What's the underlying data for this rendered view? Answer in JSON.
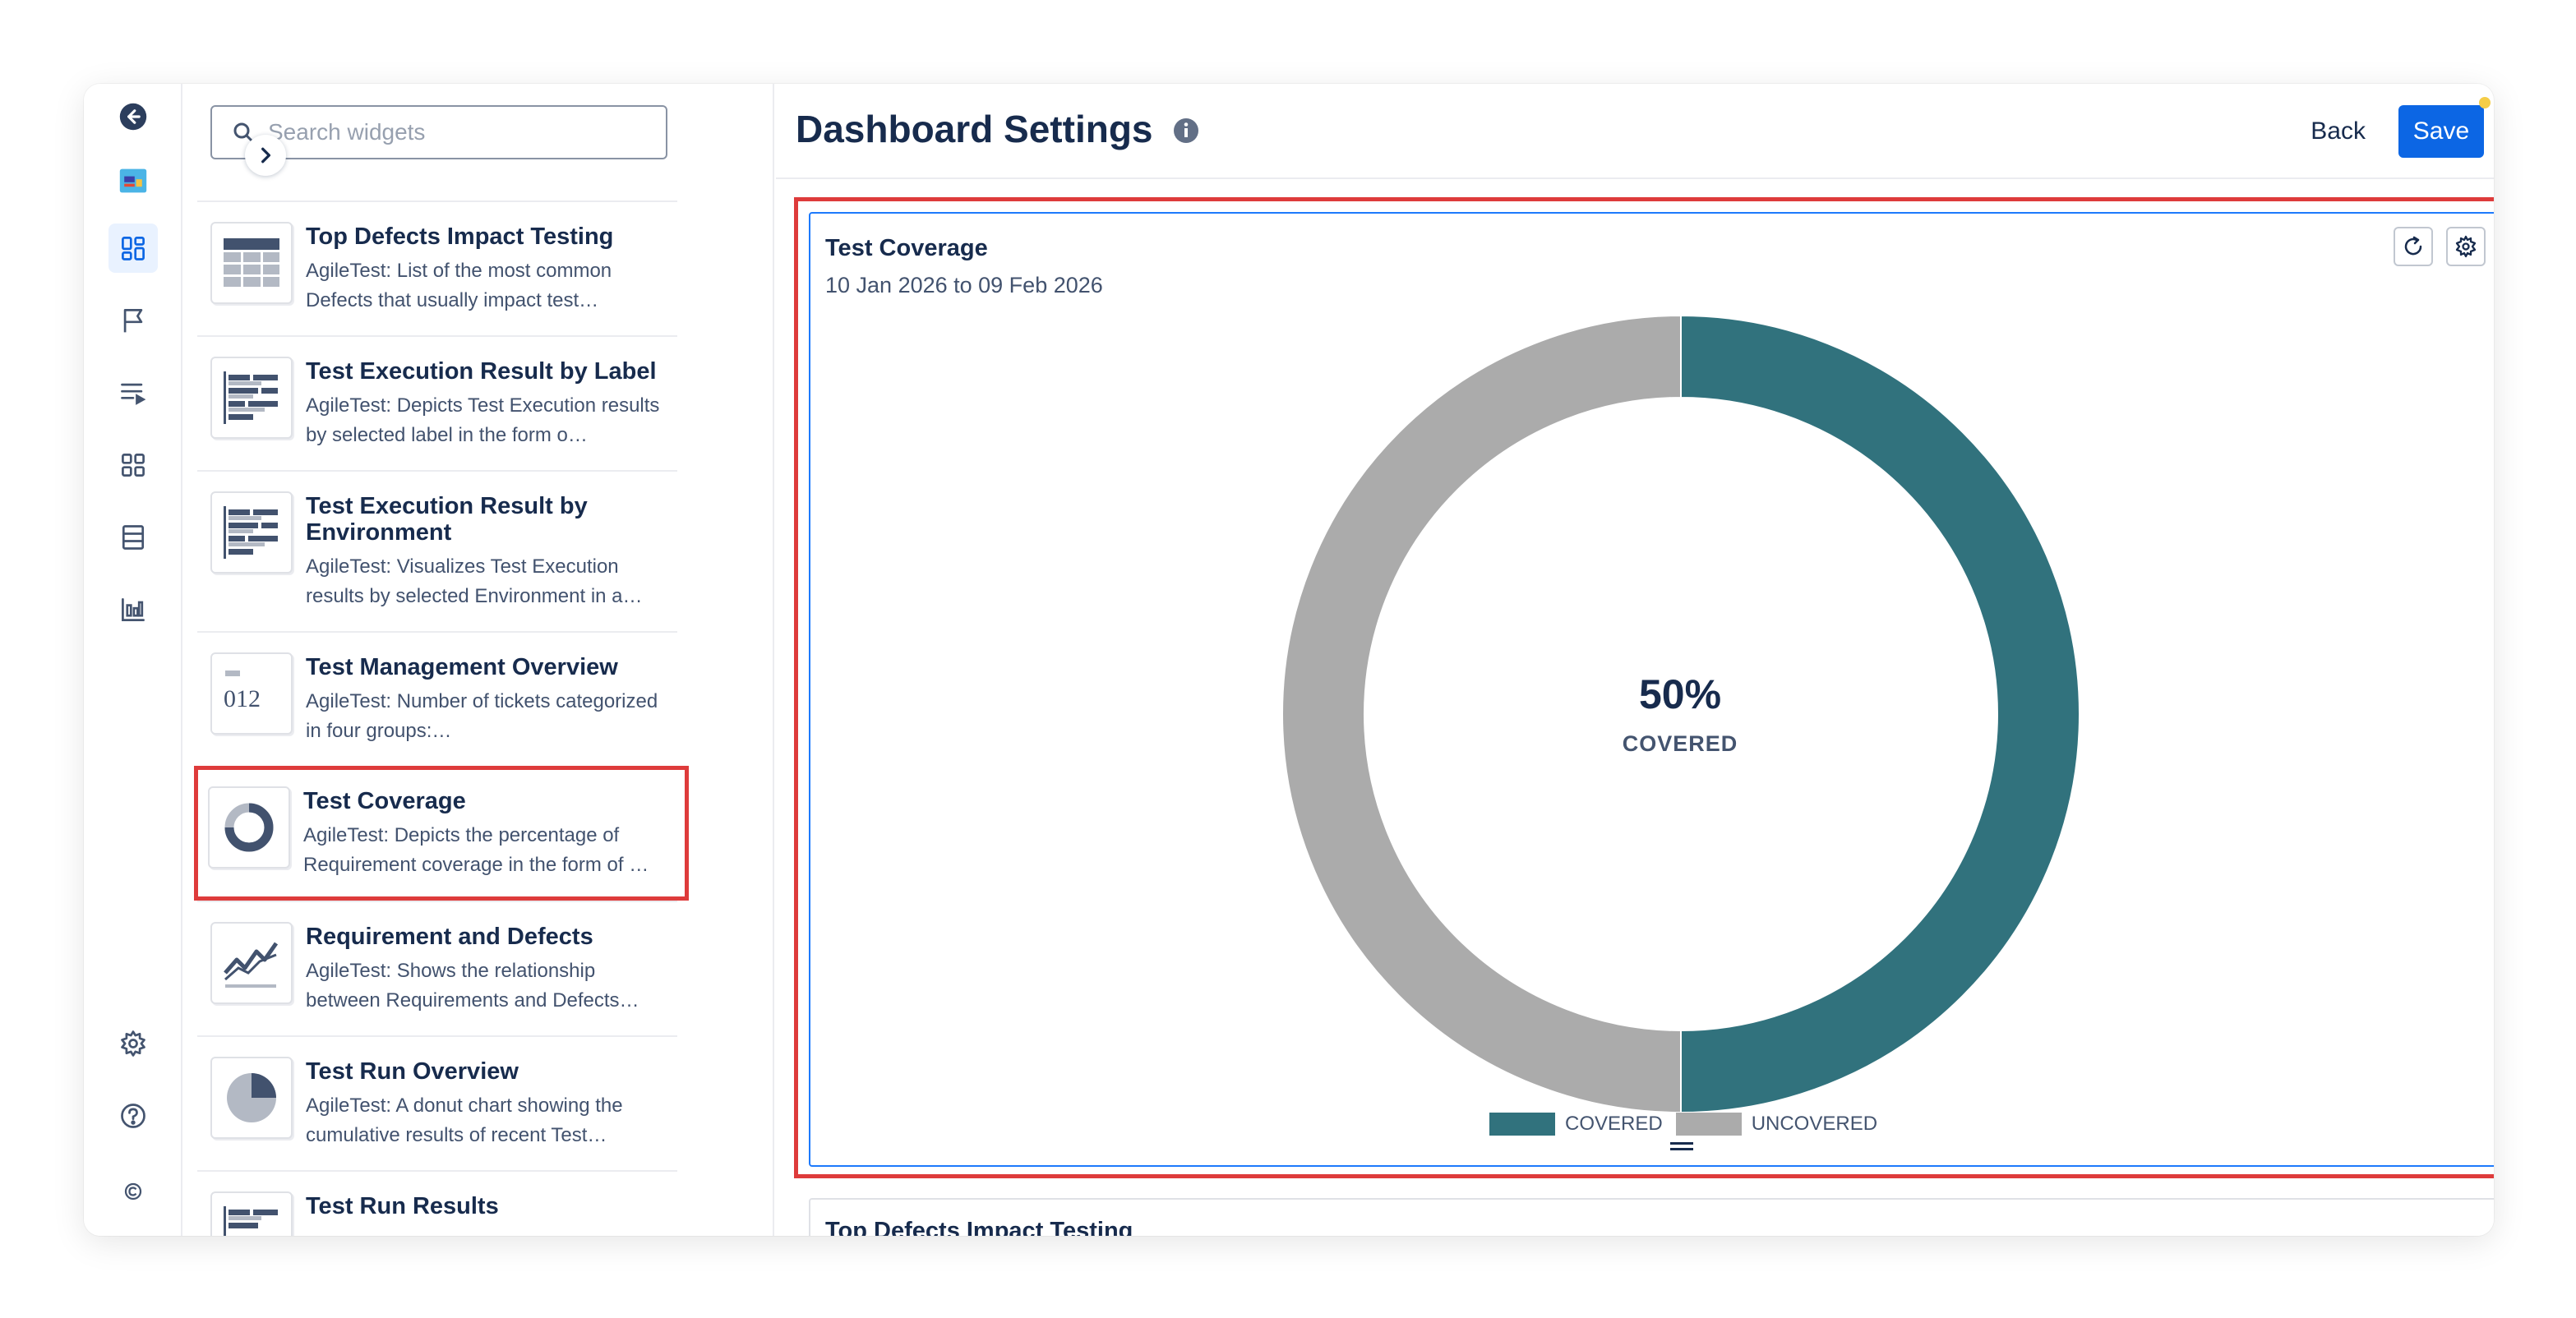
{
  "search": {
    "placeholder": "Search widgets"
  },
  "header": {
    "title": "Dashboard Settings",
    "back_label": "Back",
    "save_label": "Save"
  },
  "widgets": [
    {
      "title": "Top Defects Impact Testing",
      "desc": "AgileTest: List of the most common Defects that usually impact test…",
      "thumb": "table-thumbnail-icon"
    },
    {
      "title": "Test Execution Result by Label",
      "desc": "AgileTest: Depicts Test Execution results by selected label in the form o…",
      "thumb": "bar-thumbnail-icon"
    },
    {
      "title": "Test Execution Result by Environment",
      "desc": "AgileTest: Visualizes Test Execution results by selected Environment in a…",
      "thumb": "bar-thumbnail-icon"
    },
    {
      "title": "Test Management Overview",
      "desc": "AgileTest: Number of tickets categorized in four groups:…",
      "thumb": "numbers-thumbnail-icon",
      "thumb_text": "012"
    },
    {
      "title": "Test Coverage",
      "desc": "AgileTest: Depicts the percentage of Requirement coverage in the form of …",
      "thumb": "donut-thumbnail-icon"
    },
    {
      "title": "Requirement and Defects",
      "desc": "AgileTest: Shows the relationship between Requirements and Defects…",
      "thumb": "line-thumbnail-icon"
    },
    {
      "title": "Test Run Overview",
      "desc": "AgileTest: A donut chart showing the cumulative results of recent Test…",
      "thumb": "pie-thumbnail-icon"
    },
    {
      "title": "Test Run Results",
      "desc": "",
      "thumb": "bar-thumbnail-icon"
    }
  ],
  "card": {
    "title": "Test Coverage",
    "date_range": "10 Jan 2026 to 09 Feb 2026",
    "center_value": "50%",
    "center_label": "COVERED"
  },
  "chart_data": {
    "type": "pie",
    "categories": [
      "COVERED",
      "UNCOVERED"
    ],
    "values": [
      50,
      50
    ],
    "colors": [
      "#31727d",
      "#ababab"
    ],
    "legend": "bottom"
  },
  "next_card": {
    "title": "Top Defects Impact Testing"
  },
  "colors": {
    "primary": "#0c66e4",
    "highlight": "#de3b3b",
    "covered": "#31727d",
    "uncovered": "#ababab"
  }
}
